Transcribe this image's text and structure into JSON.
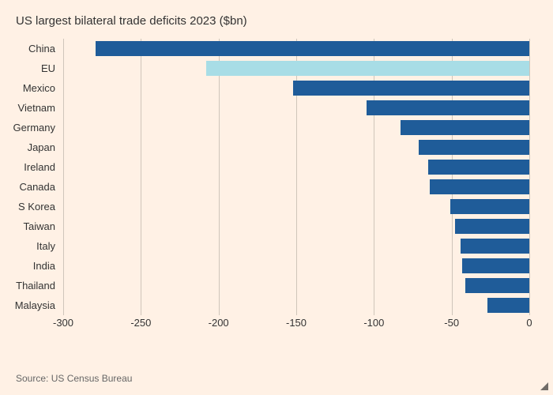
{
  "chart": {
    "type": "bar",
    "orientation": "horizontal",
    "title": "US largest bilateral trade deficits 2023 ($bn)",
    "source": "Source: US Census Bureau",
    "background_color": "#fff1e5",
    "title_color": "#333333",
    "title_fontsize": 15,
    "label_fontsize": 13,
    "label_color": "#333333",
    "grid_color": "#cfc5ba",
    "bar_colors": {
      "default": "#1f5c99",
      "highlight": "#a8dde6"
    },
    "xlim": [
      -300,
      0
    ],
    "xtick_step": 50,
    "xticks": [
      -300,
      -250,
      -200,
      -150,
      -100,
      -50,
      0
    ],
    "bar_gap_ratio": 0.22,
    "categories": [
      {
        "label": "China",
        "value": -279,
        "highlight": false
      },
      {
        "label": "EU",
        "value": -208,
        "highlight": true
      },
      {
        "label": "Mexico",
        "value": -152,
        "highlight": false
      },
      {
        "label": "Vietnam",
        "value": -105,
        "highlight": false
      },
      {
        "label": "Germany",
        "value": -83,
        "highlight": false
      },
      {
        "label": "Japan",
        "value": -71,
        "highlight": false
      },
      {
        "label": "Ireland",
        "value": -65,
        "highlight": false
      },
      {
        "label": "Canada",
        "value": -64,
        "highlight": false
      },
      {
        "label": "S Korea",
        "value": -51,
        "highlight": false
      },
      {
        "label": "Taiwan",
        "value": -48,
        "highlight": false
      },
      {
        "label": "Italy",
        "value": -44,
        "highlight": false
      },
      {
        "label": "India",
        "value": -43,
        "highlight": false
      },
      {
        "label": "Thailand",
        "value": -41,
        "highlight": false
      },
      {
        "label": "Malaysia",
        "value": -27,
        "highlight": false
      }
    ]
  }
}
